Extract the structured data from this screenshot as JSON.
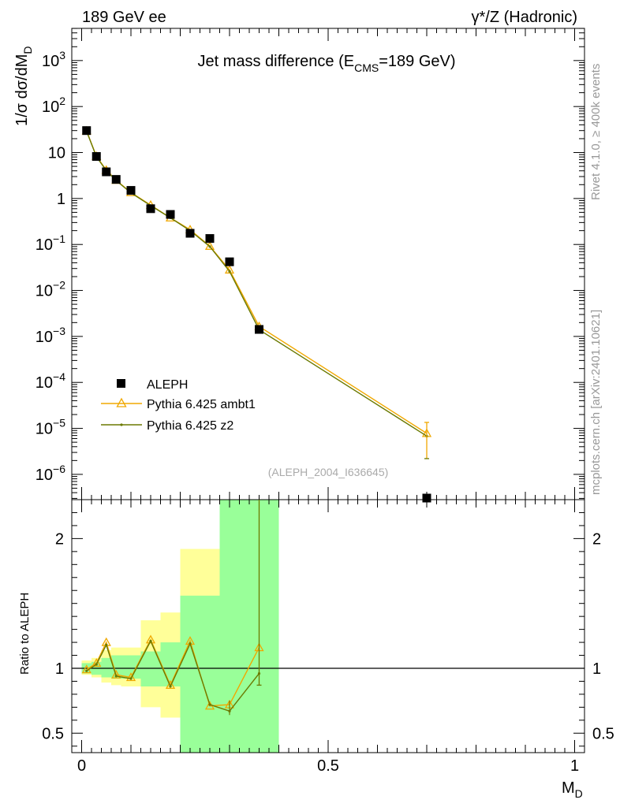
{
  "header": {
    "left": "189 GeV ee",
    "right": "γ*/Z (Hadronic)"
  },
  "side_labels": {
    "rivet": "Rivet 4.1.0, ≥ 400k events",
    "mcplots": "mcplots.cern.ch [arXiv:2401.10621]"
  },
  "chart_data": {
    "type": "scatter",
    "title_main": "Jet mass difference (E",
    "title_sub": "CMS",
    "title_tail": "=189 GeV)",
    "analysis_tag": "(ALEPH_2004_I636645)",
    "ylabel": "1/σ  dσ/dM",
    "ylabel_sub": "D",
    "xlabel": "M",
    "xlabel_sub": "D",
    "ratio_ylabel": "Ratio to ALEPH",
    "xlim": [
      -0.02,
      1.02
    ],
    "ylim_main_log": [
      -6.55,
      3.7
    ],
    "ylim_ratio": [
      0.35,
      2.3
    ],
    "ylog": true,
    "x_ticks": [
      {
        "v": 0,
        "label": "0"
      },
      {
        "v": 0.5,
        "label": "0.5"
      },
      {
        "v": 1,
        "label": "1"
      }
    ],
    "y_ticks_main": [
      {
        "e": 3,
        "base": "10",
        "exp": "3"
      },
      {
        "e": 2,
        "base": "10",
        "exp": "2"
      },
      {
        "e": 1,
        "base": "10",
        "exp": ""
      },
      {
        "e": 0,
        "base": "1",
        "exp": ""
      },
      {
        "e": -1,
        "base": "10",
        "exp": "−1"
      },
      {
        "e": -2,
        "base": "10",
        "exp": "−2"
      },
      {
        "e": -3,
        "base": "10",
        "exp": "−3"
      },
      {
        "e": -4,
        "base": "10",
        "exp": "−4"
      },
      {
        "e": -5,
        "base": "10",
        "exp": "−5"
      },
      {
        "e": -6,
        "base": "10",
        "exp": "−6"
      }
    ],
    "y_ticks_ratio": [
      {
        "v": 0.5,
        "label": "0.5"
      },
      {
        "v": 1,
        "label": "1"
      },
      {
        "v": 2,
        "label": "2"
      }
    ],
    "legend": {
      "position": "bottom-left",
      "entries": [
        "ALEPH",
        "Pythia 6.425 ambt1",
        "Pythia 6.425 z2"
      ]
    },
    "colors": {
      "data": "#000000",
      "ambt1": "#f0a800",
      "z2": "#6b7a00",
      "band_inner": "#99ff99",
      "band_outer": "#ffff99"
    },
    "data_points": [
      {
        "x": 0.01,
        "y": 30
      },
      {
        "x": 0.03,
        "y": 8.2
      },
      {
        "x": 0.05,
        "y": 3.8
      },
      {
        "x": 0.07,
        "y": 2.6
      },
      {
        "x": 0.1,
        "y": 1.5
      },
      {
        "x": 0.14,
        "y": 0.6
      },
      {
        "x": 0.18,
        "y": 0.45
      },
      {
        "x": 0.22,
        "y": 0.175
      },
      {
        "x": 0.26,
        "y": 0.135
      },
      {
        "x": 0.3,
        "y": 0.042
      },
      {
        "x": 0.36,
        "y": 0.00142
      },
      {
        "x": 0.7,
        "y": 2.8e-07
      }
    ],
    "series": [
      {
        "name": "Pythia 6.425 ambt1",
        "x": [
          0.01,
          0.03,
          0.05,
          0.07,
          0.1,
          0.14,
          0.18,
          0.22,
          0.26,
          0.3,
          0.36,
          0.7
        ],
        "y": [
          29.5,
          8.3,
          4.15,
          2.5,
          1.35,
          0.72,
          0.38,
          0.21,
          0.092,
          0.028,
          0.00165,
          7.8e-06
        ],
        "ratio": [
          0.99,
          1.04,
          1.2,
          0.95,
          0.93,
          1.22,
          0.87,
          1.21,
          0.71,
          0.72,
          1.16
        ],
        "ratio_x": [
          0.01,
          0.03,
          0.05,
          0.07,
          0.1,
          0.14,
          0.18,
          0.22,
          0.26,
          0.3,
          0.36
        ]
      },
      {
        "name": "Pythia 6.425 z2",
        "x": [
          0.01,
          0.03,
          0.05,
          0.07,
          0.1,
          0.14,
          0.18,
          0.22,
          0.26,
          0.3,
          0.36,
          0.7
        ],
        "y": [
          29.0,
          8.1,
          4.05,
          2.45,
          1.33,
          0.7,
          0.38,
          0.2,
          0.09,
          0.026,
          0.0014,
          6.8e-06
        ],
        "ratio": [
          0.98,
          1.03,
          1.18,
          0.94,
          0.92,
          1.21,
          0.86,
          1.19,
          0.72,
          0.67,
          0.96
        ],
        "ratio_x": [
          0.01,
          0.03,
          0.05,
          0.07,
          0.1,
          0.14,
          0.18,
          0.22,
          0.26,
          0.3,
          0.36
        ]
      }
    ],
    "bands": [
      {
        "x0": 0.0,
        "x1": 0.02,
        "inner": [
          0.96,
          1.04
        ],
        "outer": [
          0.95,
          1.06
        ]
      },
      {
        "x0": 0.02,
        "x1": 0.04,
        "inner": [
          0.95,
          1.05
        ],
        "outer": [
          0.93,
          1.08
        ]
      },
      {
        "x0": 0.04,
        "x1": 0.06,
        "inner": [
          0.93,
          1.08
        ],
        "outer": [
          0.89,
          1.14
        ]
      },
      {
        "x0": 0.06,
        "x1": 0.08,
        "inner": [
          0.92,
          1.1
        ],
        "outer": [
          0.87,
          1.16
        ]
      },
      {
        "x0": 0.08,
        "x1": 0.12,
        "inner": [
          0.92,
          1.1
        ],
        "outer": [
          0.86,
          1.16
        ]
      },
      {
        "x0": 0.12,
        "x1": 0.16,
        "inner": [
          0.86,
          1.13
        ],
        "outer": [
          0.7,
          1.37
        ]
      },
      {
        "x0": 0.16,
        "x1": 0.2,
        "inner": [
          0.86,
          1.2
        ],
        "outer": [
          0.62,
          1.43
        ]
      },
      {
        "x0": 0.2,
        "x1": 0.24,
        "inner": [
          0.35,
          1.56
        ],
        "outer": [
          0.35,
          1.92
        ]
      },
      {
        "x0": 0.24,
        "x1": 0.28,
        "inner": [
          0.35,
          1.56
        ],
        "outer": [
          0.35,
          1.92
        ]
      },
      {
        "x0": 0.28,
        "x1": 0.32,
        "inner": [
          0.35,
          2.3
        ],
        "outer": [
          0.35,
          2.3
        ]
      },
      {
        "x0": 0.32,
        "x1": 0.4,
        "inner": [
          0.35,
          2.3
        ],
        "outer": [
          0.35,
          2.3
        ]
      }
    ]
  }
}
